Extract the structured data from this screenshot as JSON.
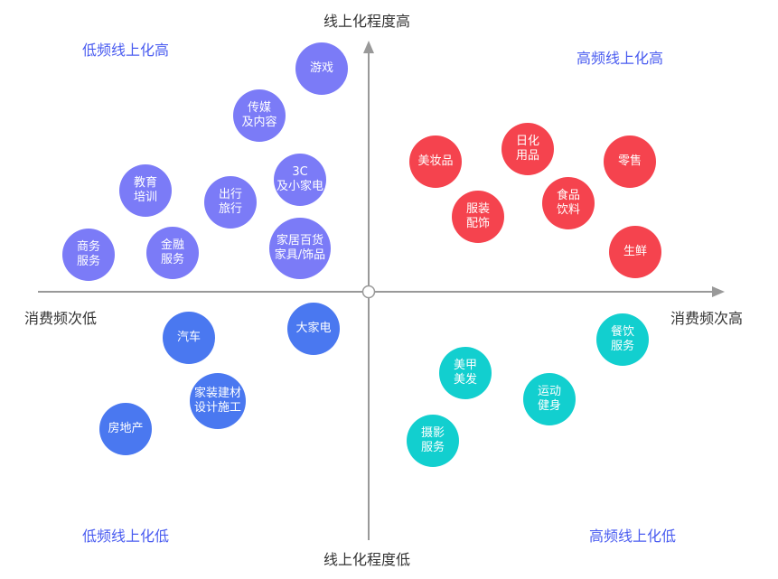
{
  "axes": {
    "y_top": "线上化程度高",
    "y_bottom": "线上化程度低",
    "x_left": "消费频次低",
    "x_right": "消费频次高"
  },
  "quadrants": {
    "top_left": "低频线上化高",
    "top_right": "高频线上化高",
    "bottom_left": "低频线上化低",
    "bottom_right": "高频线上化低"
  },
  "colors": {
    "low_freq_high_online": "#7b7bf7",
    "high_freq_high_online": "#f5434e",
    "low_freq_low_online": "#4a78f0",
    "high_freq_low_online": "#12cfcf",
    "quadrant_label": "#4a5cf0",
    "axis": "#999999"
  },
  "bubbles": [
    {
      "lines": [
        "游戏"
      ],
      "group": "low_freq_high_online"
    },
    {
      "lines": [
        "传媒",
        "及内容"
      ],
      "group": "low_freq_high_online"
    },
    {
      "lines": [
        "3C",
        "及小家电"
      ],
      "group": "low_freq_high_online"
    },
    {
      "lines": [
        "教育",
        "培训"
      ],
      "group": "low_freq_high_online"
    },
    {
      "lines": [
        "出行",
        "旅行"
      ],
      "group": "low_freq_high_online"
    },
    {
      "lines": [
        "家居百货",
        "家具/饰品"
      ],
      "group": "low_freq_high_online"
    },
    {
      "lines": [
        "商务",
        "服务"
      ],
      "group": "low_freq_high_online"
    },
    {
      "lines": [
        "金融",
        "服务"
      ],
      "group": "low_freq_high_online"
    },
    {
      "lines": [
        "美妆品"
      ],
      "group": "high_freq_high_online"
    },
    {
      "lines": [
        "日化",
        "用品"
      ],
      "group": "high_freq_high_online"
    },
    {
      "lines": [
        "零售"
      ],
      "group": "high_freq_high_online"
    },
    {
      "lines": [
        "食品",
        "饮料"
      ],
      "group": "high_freq_high_online"
    },
    {
      "lines": [
        "服装",
        "配饰"
      ],
      "group": "high_freq_high_online"
    },
    {
      "lines": [
        "生鲜"
      ],
      "group": "high_freq_high_online"
    },
    {
      "lines": [
        "汽车"
      ],
      "group": "low_freq_low_online"
    },
    {
      "lines": [
        "大家电"
      ],
      "group": "low_freq_low_online"
    },
    {
      "lines": [
        "家装建材",
        "设计施工"
      ],
      "group": "low_freq_low_online"
    },
    {
      "lines": [
        "房地产"
      ],
      "group": "low_freq_low_online"
    },
    {
      "lines": [
        "餐饮",
        "服务"
      ],
      "group": "high_freq_low_online"
    },
    {
      "lines": [
        "美甲",
        "美发"
      ],
      "group": "high_freq_low_online"
    },
    {
      "lines": [
        "运动",
        "健身"
      ],
      "group": "high_freq_low_online"
    },
    {
      "lines": [
        "摄影",
        "服务"
      ],
      "group": "high_freq_low_online"
    }
  ]
}
